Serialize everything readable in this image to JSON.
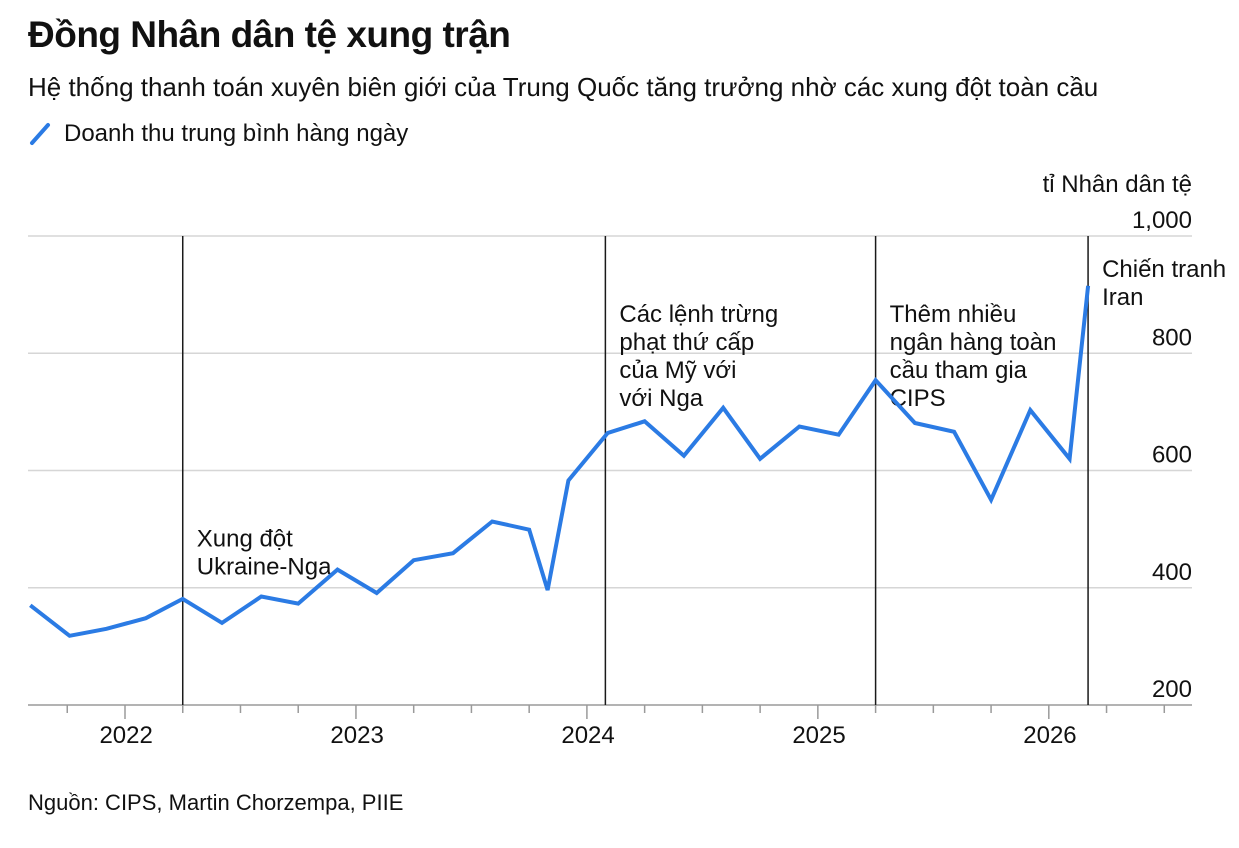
{
  "header": {
    "title": "Đồng Nhân dân tệ xung trận",
    "subtitle": "Hệ thống thanh toán xuyên biên giới của Trung Quốc tăng trưởng nhờ các xung đột toàn cầu"
  },
  "legend": {
    "label": "Doanh thu trung bình hàng ngày",
    "color": "#2b7be4"
  },
  "footer": {
    "source": "Nguồn: CIPS, Martin Chorzempa, PIIE"
  },
  "chart_data": {
    "type": "line",
    "title": "Đồng Nhân dân tệ xung trận",
    "subtitle": "Hệ thống thanh toán xuyên biên giới của Trung Quốc tăng trưởng nhờ các xung đột toàn cầu",
    "ylabel": "tỉ Nhân dân tệ",
    "ylim": [
      200,
      1000
    ],
    "xlim": [
      2021.58,
      2026.62
    ],
    "yticks": [
      {
        "value": 200,
        "label": "200"
      },
      {
        "value": 400,
        "label": "400"
      },
      {
        "value": 600,
        "label": "600"
      },
      {
        "value": 800,
        "label": "800"
      },
      {
        "value": 1000,
        "label": "1,000"
      }
    ],
    "xticks": [
      {
        "value": 2022,
        "label": "2022"
      },
      {
        "value": 2023,
        "label": "2023"
      },
      {
        "value": 2024,
        "label": "2024"
      },
      {
        "value": 2025,
        "label": "2025"
      },
      {
        "value": 2026,
        "label": "2026"
      }
    ],
    "grid": true,
    "legend_position": "top-left",
    "series": [
      {
        "name": "Doanh thu trung bình hàng ngày",
        "color": "#2b7be4",
        "x": [
          2021.59,
          2021.76,
          2021.92,
          2022.09,
          2022.25,
          2022.42,
          2022.59,
          2022.75,
          2022.92,
          2023.09,
          2023.25,
          2023.42,
          2023.59,
          2023.75,
          2023.83,
          2023.92,
          2024.09,
          2024.25,
          2024.42,
          2024.59,
          2024.75,
          2024.92,
          2025.09,
          2025.25,
          2025.42,
          2025.59,
          2025.75,
          2025.92,
          2026.09,
          2026.17
        ],
        "y": [
          370,
          318,
          330,
          348,
          381,
          340,
          385,
          373,
          431,
          391,
          447,
          459,
          513,
          499,
          396,
          583,
          664,
          684,
          625,
          707,
          620,
          675,
          661,
          754,
          681,
          666,
          550,
          703,
          620,
          915
        ]
      }
    ],
    "annotations": [
      {
        "x": 2022.25,
        "lines": [
          "Xung đột",
          "Ukraine-Nga"
        ],
        "label_y": 470
      },
      {
        "x": 2024.08,
        "lines": [
          "Các lệnh trừng",
          "phạt thứ cấp",
          "của Mỹ với",
          "với Nga"
        ],
        "label_y": 853
      },
      {
        "x": 2025.25,
        "lines": [
          "Thêm nhiều",
          "ngân hàng toàn",
          "cầu tham gia",
          "CIPS"
        ],
        "label_y": 853
      },
      {
        "x": 2026.17,
        "lines": [
          "Chiến tranh",
          "Iran"
        ],
        "label_y": 930
      }
    ]
  }
}
